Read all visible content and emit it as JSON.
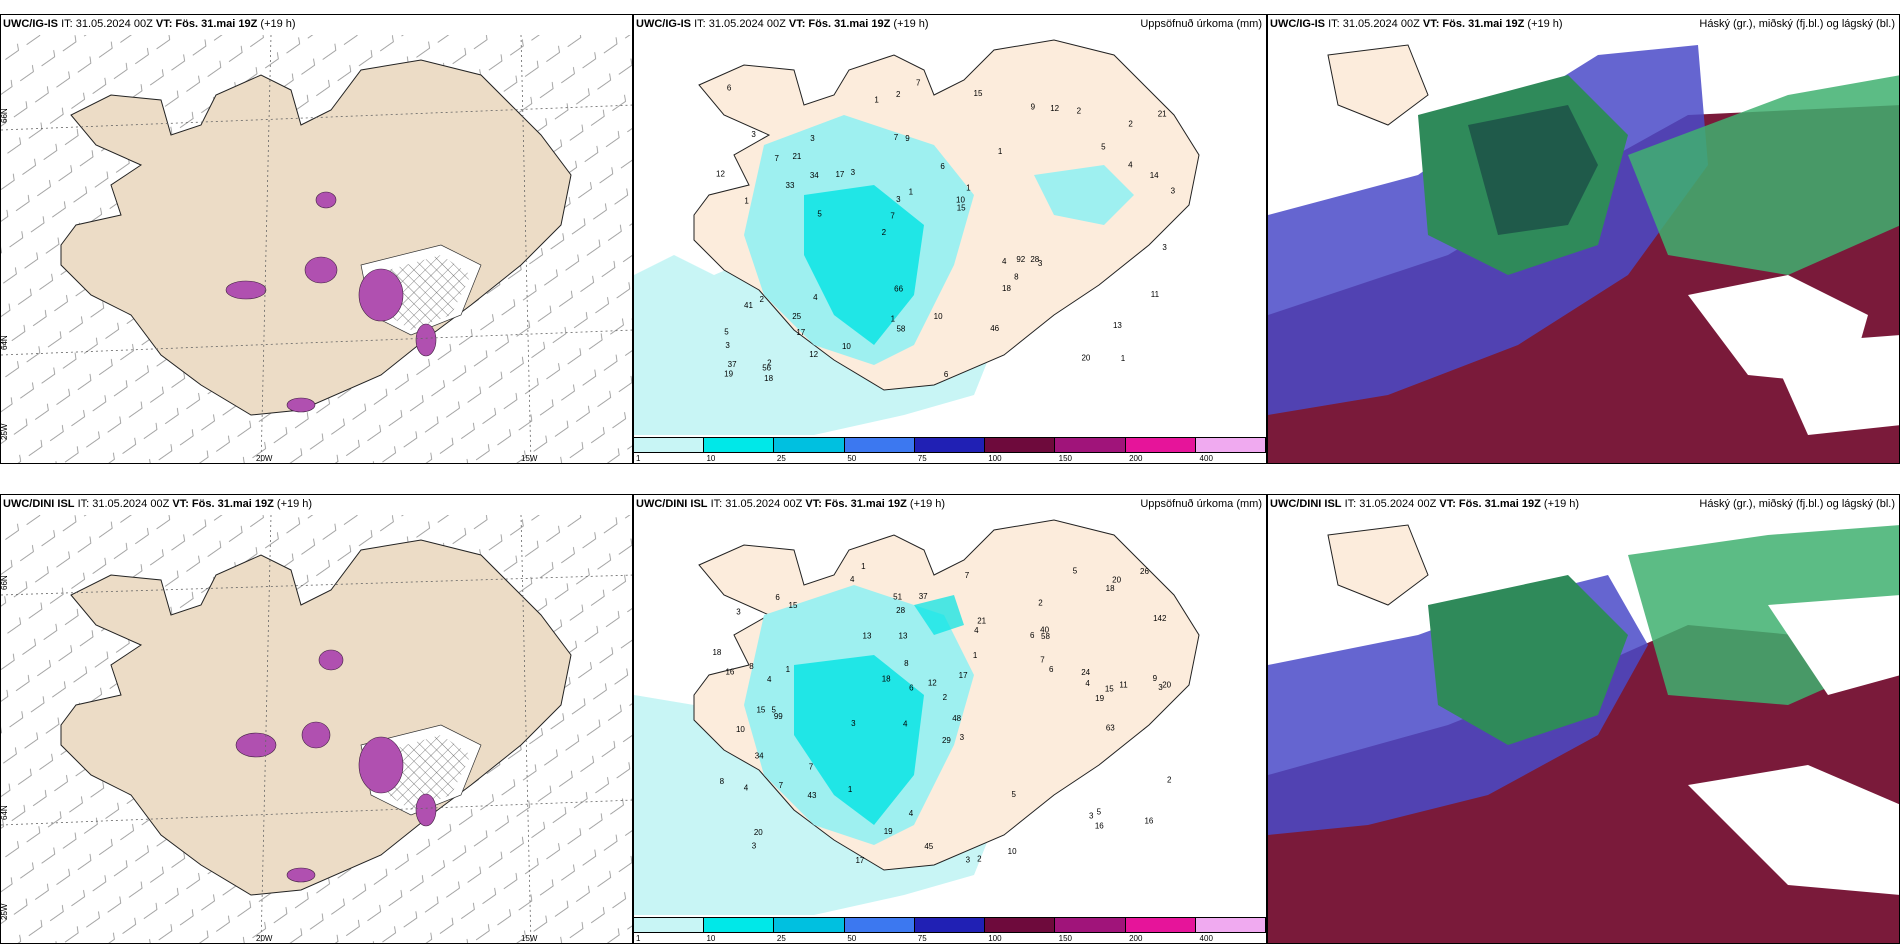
{
  "rows": [
    {
      "model": "UWC/IG-IS",
      "it": "IT: 31.05.2024 00Z",
      "vt_label": "VT: Fös. 31.mai 19Z",
      "lead": "(+19 h)"
    },
    {
      "model": "UWC/DINI ISL",
      "it": "IT: 31.05.2024 00Z",
      "vt_label": "VT: Fös. 31.mai 19Z",
      "lead": "(+19 h)"
    }
  ],
  "panel_titles": {
    "precip": "Uppsöfnuð úrkoma (mm)",
    "clouds": "Háský (gr.), miðský (fj.bl.) og lágský (bl.)"
  },
  "axis_labels": {
    "lon_20w": "20W",
    "lon_15w": "15W",
    "lat_66n": "66N",
    "lat_64n": "64N",
    "lon_25w": "25W"
  },
  "colorbar": {
    "labels": [
      "1",
      "10",
      "25",
      "50",
      "75",
      "100",
      "150",
      "200",
      "400"
    ],
    "colors": [
      "#c8f5f5",
      "#00e8e8",
      "#00c0e0",
      "#3c78f0",
      "#2020b4",
      "#6e0a3c",
      "#a0147a",
      "#e6149a",
      "#f0aaf0"
    ]
  },
  "precip_top_values": [
    "1",
    "1",
    "2",
    "2",
    "1",
    "2",
    "7",
    "6",
    "2",
    "3",
    "3",
    "17",
    "9",
    "1",
    "3",
    "3",
    "2",
    "3",
    "4",
    "4",
    "7",
    "1",
    "3",
    "3",
    "9",
    "4",
    "20",
    "13",
    "28",
    "6",
    "17",
    "33",
    "18",
    "12",
    "14",
    "10",
    "37",
    "58",
    "15",
    "41",
    "5",
    "21",
    "8",
    "46",
    "25",
    "18",
    "19",
    "10",
    "2",
    "7",
    "5",
    "12",
    "21",
    "12",
    "56",
    "15",
    "1",
    "1",
    "11",
    "66",
    "10",
    "92",
    "34",
    "5",
    "6",
    "7",
    "3"
  ],
  "precip_bot_values": [
    "1",
    "2",
    "3",
    "4",
    "3",
    "5",
    "3",
    "6",
    "10",
    "4",
    "2",
    "3",
    "4",
    "3",
    "3",
    "2",
    "4",
    "5",
    "6",
    "7",
    "4",
    "15",
    "20",
    "11",
    "8",
    "8",
    "6",
    "4",
    "5",
    "4",
    "3",
    "21",
    "7",
    "18",
    "5",
    "2",
    "24",
    "19",
    "26",
    "37",
    "20",
    "17",
    "10",
    "6",
    "45",
    "58",
    "16",
    "40",
    "18",
    "48",
    "28",
    "19",
    "17",
    "18",
    "7",
    "43",
    "8",
    "12",
    "20",
    "13",
    "16",
    "63",
    "15",
    "1",
    "29",
    "16",
    "15",
    "99",
    "13",
    "142",
    "34",
    "51",
    "9",
    "7",
    "1",
    "1"
  ],
  "colors": {
    "land": "#ecdcc6",
    "precip_light": "#c8f5f5",
    "cloud_high": "#7a1a3a",
    "cloud_mid": "#2f8a5a",
    "cloud_low": "#4a4ac8"
  }
}
